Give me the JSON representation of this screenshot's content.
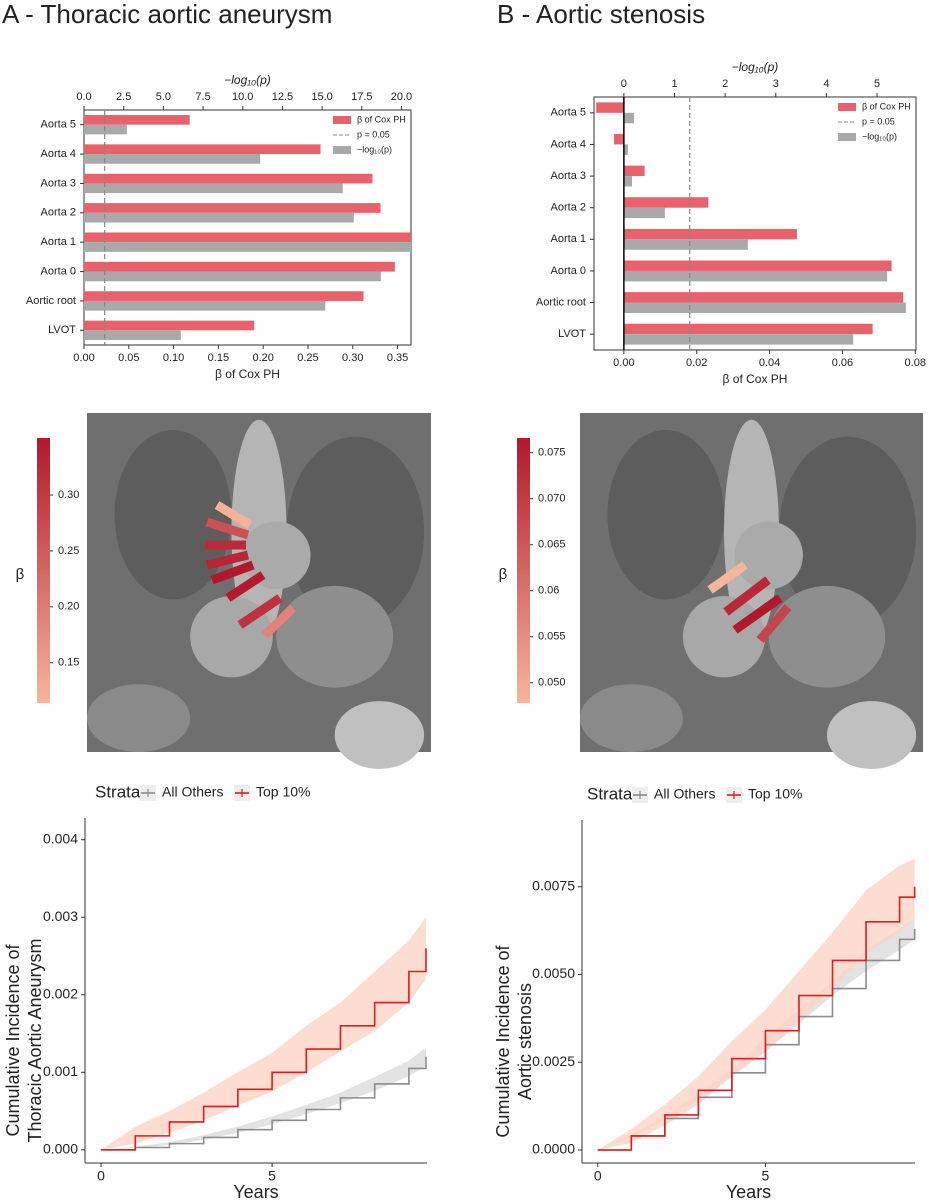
{
  "panel_titles": [
    "A - Thoracic aortic aneurysm",
    "B - Aortic stenosis"
  ],
  "chart_data": [
    {
      "type": "bar",
      "orientation": "horizontal",
      "categories": [
        "Aorta 5",
        "Aorta 4",
        "Aorta 3",
        "Aorta 2",
        "Aorta 1",
        "Aorta 0",
        "Aortic root",
        "LVOT"
      ],
      "series": [
        {
          "name": "β of Cox PH",
          "color": "#e8616b",
          "values": [
            0.118,
            0.264,
            0.322,
            0.331,
            0.365,
            0.347,
            0.312,
            0.19
          ]
        },
        {
          "name": "−log₁₀(p)",
          "color": "#a9a9a9",
          "axis": "x2",
          "values": [
            2.7,
            11.1,
            16.3,
            17.0,
            20.6,
            18.7,
            15.2,
            6.1
          ]
        }
      ],
      "xlabel": "β of Cox PH",
      "x2label": "−log₁₀(p)",
      "xlim": [
        0,
        0.365
      ],
      "xticks": [
        {
          "value": 0,
          "label": "0.00"
        },
        0.05,
        {
          "value": 0.1,
          "label": "0.10"
        },
        0.15,
        {
          "value": 0.2,
          "label": "0.20"
        },
        0.25,
        {
          "value": 0.3,
          "label": "0.30"
        },
        0.35
      ],
      "x2lim": [
        0,
        20.6
      ],
      "x2ticks": [
        {
          "value": 0,
          "label": "0.0"
        },
        2.5,
        {
          "value": 5,
          "label": "5.0"
        },
        7.5,
        {
          "value": 10,
          "label": "10.0"
        },
        12.5,
        {
          "value": 15,
          "label": "15.0"
        },
        17.5,
        {
          "value": 20,
          "label": "20.0"
        }
      ],
      "reference_line": {
        "value": 1.301,
        "axis": "x2",
        "label": "p = 0.05",
        "color": "#888888"
      },
      "legend": "upper right"
    },
    {
      "type": "image",
      "colorbar": {
        "label": "β",
        "clim": [
          0.114,
          0.351
        ],
        "cticks": [
          {
            "value": 0.15,
            "label": "0.15"
          },
          {
            "value": 0.2,
            "label": "0.20"
          },
          {
            "value": 0.25,
            "label": "0.25"
          },
          {
            "value": 0.3,
            "label": "0.30"
          }
        ],
        "colors": [
          "#f7b59b",
          "#b2182b"
        ]
      }
    },
    {
      "type": "line",
      "legend_title": "Strata",
      "x": [
        0,
        1,
        2,
        3,
        4,
        5,
        6,
        7,
        8,
        9,
        9.5
      ],
      "series": [
        {
          "name": "All Others",
          "color": "#8c8c8c",
          "band_color": "#dcdcdc",
          "values": [
            0,
            3e-05,
            8e-05,
            0.00016,
            0.00026,
            0.00038,
            0.00052,
            0.00067,
            0.00085,
            0.00105,
            0.0012
          ],
          "lower": [
            0,
            2e-05,
            6e-05,
            0.00013,
            0.00022,
            0.00033,
            0.00046,
            0.0006,
            0.00076,
            0.00095,
            0.00108
          ],
          "upper": [
            0,
            4e-05,
            0.0001,
            0.00019,
            0.0003,
            0.00043,
            0.00058,
            0.00074,
            0.00094,
            0.00115,
            0.00132
          ]
        },
        {
          "name": "Top 10%",
          "color": "#e41a1c",
          "band_color": "#fcd5c5",
          "values": [
            0,
            0.00018,
            0.00036,
            0.00056,
            0.00078,
            0.001,
            0.0013,
            0.0016,
            0.0019,
            0.0023,
            0.0026
          ],
          "lower": [
            0,
            8e-05,
            0.00022,
            0.00038,
            0.00057,
            0.00075,
            0.001,
            0.00127,
            0.00153,
            0.0019,
            0.0022
          ],
          "upper": [
            0,
            0.0003,
            0.0005,
            0.00074,
            0.001,
            0.00125,
            0.0016,
            0.0019,
            0.0023,
            0.0027,
            0.003
          ]
        }
      ],
      "xlabel": "Years",
      "ylabel": [
        "Cumulative Incidence of",
        "Thoracic Aortic Aneurysm"
      ],
      "xlim": [
        -0.47,
        9.53
      ],
      "xticks": [
        0,
        5
      ],
      "ylim": [
        -0.00017,
        0.00428
      ],
      "yticks": [
        {
          "value": 0,
          "label": "0.000"
        },
        0.001,
        0.002,
        0.003,
        0.004
      ]
    },
    {
      "type": "bar",
      "orientation": "horizontal",
      "categories": [
        "Aorta 5",
        "Aorta 4",
        "Aorta 3",
        "Aorta 2",
        "Aorta 1",
        "Aorta 0",
        "Aortic root",
        "LVOT"
      ],
      "series": [
        {
          "name": "β of Cox PH",
          "color": "#e8616b",
          "values": [
            -0.0076,
            -0.0027,
            0.0057,
            0.0232,
            0.0475,
            0.0735,
            0.0767,
            0.0683
          ]
        },
        {
          "name": "−log₁₀(p)",
          "color": "#a9a9a9",
          "axis": "x2",
          "values": [
            0.2,
            0.08,
            0.16,
            0.81,
            2.45,
            5.2,
            5.57,
            4.53
          ]
        }
      ],
      "xlabel": "β of Cox PH",
      "x2label": "−log₁₀(p)",
      "xlim": [
        -0.0082,
        0.0802
      ],
      "xticks": [
        {
          "value": 0,
          "label": "0.00"
        },
        0.02,
        0.04,
        0.06,
        0.08
      ],
      "x2lim": [
        -0.59,
        5.77
      ],
      "x2ticks": [
        0,
        1,
        2,
        3,
        4,
        5
      ],
      "reference_line": {
        "value": 1.301,
        "axis": "x2",
        "label": "p = 0.05",
        "color": "#888888"
      },
      "legend": "upper right"
    },
    {
      "type": "image",
      "colorbar": {
        "label": "β",
        "clim": [
          0.0478,
          0.0766
        ],
        "cticks": [
          {
            "value": 0.05,
            "label": "0.050"
          },
          0.055,
          0.06,
          0.065,
          {
            "value": 0.07,
            "label": "0.070"
          },
          0.075
        ],
        "colors": [
          "#f7b59b",
          "#b2182b"
        ]
      }
    },
    {
      "type": "line",
      "legend_title": "Strata",
      "x": [
        0,
        1,
        2,
        3,
        4,
        5,
        6,
        7,
        8,
        9,
        9.45
      ],
      "series": [
        {
          "name": "All Others",
          "color": "#8c8c8c",
          "band_color": "#dcdcdc",
          "values": [
            0,
            0.0004,
            0.0009,
            0.0015,
            0.0022,
            0.003,
            0.0038,
            0.0046,
            0.0054,
            0.006,
            0.0063
          ],
          "lower": [
            0,
            0.00036,
            0.00084,
            0.0014,
            0.0021,
            0.0028,
            0.0036,
            0.0044,
            0.0051,
            0.0057,
            0.006
          ],
          "upper": [
            0,
            0.00044,
            0.00096,
            0.0016,
            0.0023,
            0.0032,
            0.004,
            0.0048,
            0.0057,
            0.0063,
            0.0066
          ]
        },
        {
          "name": "Top 10%",
          "color": "#e41a1c",
          "band_color": "#fcd5c5",
          "values": [
            0,
            0.0004,
            0.001,
            0.0017,
            0.0026,
            0.0034,
            0.0044,
            0.0054,
            0.0065,
            0.0072,
            0.0075
          ],
          "lower": [
            0,
            0.0002,
            0.0007,
            0.0013,
            0.0021,
            0.0028,
            0.0037,
            0.0046,
            0.0056,
            0.0062,
            0.0066
          ],
          "upper": [
            0,
            0.0006,
            0.0013,
            0.0021,
            0.0031,
            0.004,
            0.0051,
            0.0062,
            0.0074,
            0.0081,
            0.0083
          ]
        }
      ],
      "xlabel": "Years",
      "ylabel": [
        "Cumulative Incidence of",
        "Aortic stenosis"
      ],
      "xlim": [
        -0.47,
        9.46
      ],
      "xticks": [
        0,
        5
      ],
      "ylim": [
        -0.00037,
        0.0094
      ],
      "yticks": [
        {
          "value": 0,
          "label": "0.0000"
        },
        0.0025,
        {
          "value": 0.005,
          "label": "0.0050"
        },
        0.0075
      ]
    }
  ]
}
